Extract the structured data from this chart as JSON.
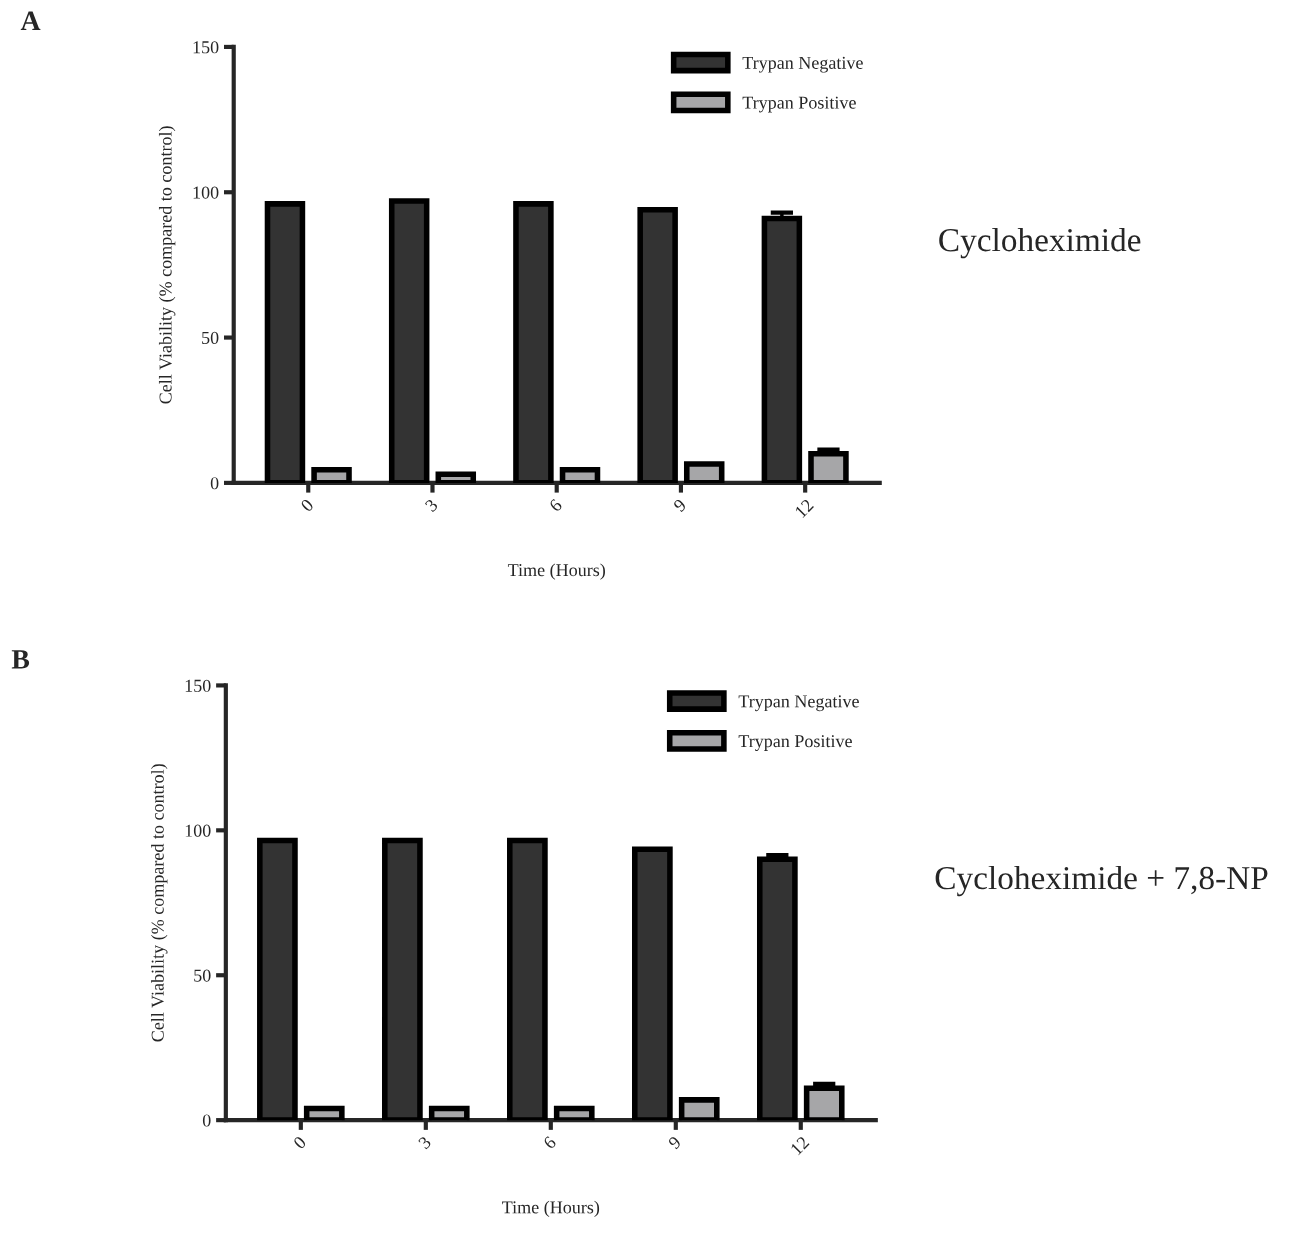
{
  "chart_data": [
    {
      "type": "bar",
      "title": "A",
      "xlabel": "Time (Hours)",
      "ylabel": "Cell Viability (% compared to control)",
      "categories": [
        "0",
        "3",
        "6",
        "9",
        "12"
      ],
      "series": [
        {
          "name": "Trypan Negative",
          "color": "#333333",
          "values": [
            96,
            97,
            96,
            94,
            91
          ],
          "errors": [
            null,
            null,
            null,
            null,
            2
          ]
        },
        {
          "name": "Trypan Positive",
          "color": "#a6a6a8",
          "values": [
            4.5,
            3,
            4.5,
            6.5,
            10
          ],
          "errors": [
            null,
            null,
            null,
            null,
            1.5
          ]
        }
      ],
      "ylim": [
        0,
        150
      ],
      "yticks": [
        0,
        50,
        100,
        150
      ],
      "grid": false,
      "legend": "top right",
      "annotations": [
        "Cycloheximide"
      ]
    },
    {
      "type": "bar",
      "title": "B",
      "xlabel": "Time (Hours)",
      "ylabel": "Cell Viability (% compared to control)",
      "categories": [
        "0",
        "3",
        "6",
        "9",
        "12"
      ],
      "series": [
        {
          "name": "Trypan Negative",
          "color": "#333333",
          "values": [
            96.5,
            96.5,
            96.5,
            93.5,
            90
          ],
          "errors": [
            null,
            null,
            null,
            null,
            1.5
          ]
        },
        {
          "name": "Trypan Positive",
          "color": "#a6a6a8",
          "values": [
            4,
            4,
            4,
            7,
            11
          ],
          "errors": [
            null,
            null,
            null,
            null,
            1.5
          ]
        }
      ],
      "ylim": [
        0,
        150
      ],
      "yticks": [
        0,
        50,
        100,
        150
      ],
      "grid": false,
      "legend": "top right",
      "annotations": [
        "Cycloheximide + 7,8-NP"
      ]
    }
  ]
}
